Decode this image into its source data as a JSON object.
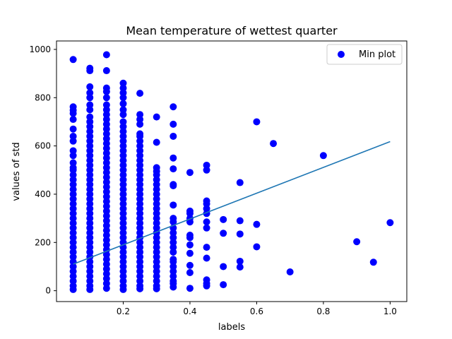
{
  "chart_data": {
    "type": "scatter",
    "title": "Mean temperature of wettest quarter",
    "xlabel": "labels",
    "ylabel": "values of std",
    "xlim": [
      0.0,
      1.05
    ],
    "ylim": [
      -45,
      1035
    ],
    "xticks": [
      0.2,
      0.4,
      0.6,
      0.8,
      1.0
    ],
    "xtick_labels": [
      "0.2",
      "0.4",
      "0.6",
      "0.8",
      "1.0"
    ],
    "yticks": [
      0,
      200,
      400,
      600,
      800,
      1000
    ],
    "ytick_labels": [
      "0",
      "200",
      "400",
      "600",
      "800",
      "1000"
    ],
    "grid": false,
    "legend": {
      "position": "upper right",
      "entries": [
        "Min plot"
      ]
    },
    "series": [
      {
        "name": "Min plot",
        "kind": "scatter",
        "color": "#0000ff",
        "points": [
          [
            0.05,
            958
          ],
          [
            0.05,
            762
          ],
          [
            0.05,
            748
          ],
          [
            0.05,
            735
          ],
          [
            0.05,
            710
          ],
          [
            0.05,
            670
          ],
          [
            0.05,
            640
          ],
          [
            0.05,
            620
          ],
          [
            0.05,
            580
          ],
          [
            0.05,
            560
          ],
          [
            0.05,
            530
          ],
          [
            0.05,
            510
          ],
          [
            0.05,
            500
          ],
          [
            0.05,
            480
          ],
          [
            0.05,
            460
          ],
          [
            0.05,
            440
          ],
          [
            0.05,
            420
          ],
          [
            0.05,
            400
          ],
          [
            0.05,
            380
          ],
          [
            0.05,
            360
          ],
          [
            0.05,
            340
          ],
          [
            0.05,
            320
          ],
          [
            0.05,
            300
          ],
          [
            0.05,
            280
          ],
          [
            0.05,
            260
          ],
          [
            0.05,
            240
          ],
          [
            0.05,
            220
          ],
          [
            0.05,
            200
          ],
          [
            0.05,
            180
          ],
          [
            0.05,
            160
          ],
          [
            0.05,
            140
          ],
          [
            0.05,
            120
          ],
          [
            0.05,
            100
          ],
          [
            0.05,
            80
          ],
          [
            0.05,
            60
          ],
          [
            0.05,
            40
          ],
          [
            0.05,
            20
          ],
          [
            0.05,
            5
          ],
          [
            0.1,
            922
          ],
          [
            0.1,
            912
          ],
          [
            0.1,
            845
          ],
          [
            0.1,
            820
          ],
          [
            0.1,
            800
          ],
          [
            0.1,
            770
          ],
          [
            0.1,
            750
          ],
          [
            0.1,
            720
          ],
          [
            0.1,
            700
          ],
          [
            0.1,
            680
          ],
          [
            0.1,
            660
          ],
          [
            0.1,
            640
          ],
          [
            0.1,
            620
          ],
          [
            0.1,
            600
          ],
          [
            0.1,
            580
          ],
          [
            0.1,
            560
          ],
          [
            0.1,
            540
          ],
          [
            0.1,
            520
          ],
          [
            0.1,
            500
          ],
          [
            0.1,
            480
          ],
          [
            0.1,
            460
          ],
          [
            0.1,
            440
          ],
          [
            0.1,
            420
          ],
          [
            0.1,
            400
          ],
          [
            0.1,
            380
          ],
          [
            0.1,
            360
          ],
          [
            0.1,
            340
          ],
          [
            0.1,
            320
          ],
          [
            0.1,
            300
          ],
          [
            0.1,
            280
          ],
          [
            0.1,
            260
          ],
          [
            0.1,
            240
          ],
          [
            0.1,
            220
          ],
          [
            0.1,
            200
          ],
          [
            0.1,
            180
          ],
          [
            0.1,
            160
          ],
          [
            0.1,
            140
          ],
          [
            0.1,
            120
          ],
          [
            0.1,
            100
          ],
          [
            0.1,
            80
          ],
          [
            0.1,
            60
          ],
          [
            0.1,
            40
          ],
          [
            0.1,
            20
          ],
          [
            0.1,
            5
          ],
          [
            0.15,
            978
          ],
          [
            0.15,
            912
          ],
          [
            0.15,
            840
          ],
          [
            0.15,
            825
          ],
          [
            0.15,
            800
          ],
          [
            0.15,
            770
          ],
          [
            0.15,
            750
          ],
          [
            0.15,
            730
          ],
          [
            0.15,
            710
          ],
          [
            0.15,
            690
          ],
          [
            0.15,
            670
          ],
          [
            0.15,
            650
          ],
          [
            0.15,
            630
          ],
          [
            0.15,
            610
          ],
          [
            0.15,
            590
          ],
          [
            0.15,
            570
          ],
          [
            0.15,
            550
          ],
          [
            0.15,
            530
          ],
          [
            0.15,
            510
          ],
          [
            0.15,
            490
          ],
          [
            0.15,
            470
          ],
          [
            0.15,
            450
          ],
          [
            0.15,
            430
          ],
          [
            0.15,
            410
          ],
          [
            0.15,
            390
          ],
          [
            0.15,
            370
          ],
          [
            0.15,
            350
          ],
          [
            0.15,
            330
          ],
          [
            0.15,
            310
          ],
          [
            0.15,
            290
          ],
          [
            0.15,
            270
          ],
          [
            0.15,
            250
          ],
          [
            0.15,
            230
          ],
          [
            0.15,
            210
          ],
          [
            0.15,
            190
          ],
          [
            0.15,
            170
          ],
          [
            0.15,
            150
          ],
          [
            0.15,
            130
          ],
          [
            0.15,
            110
          ],
          [
            0.15,
            90
          ],
          [
            0.15,
            70
          ],
          [
            0.15,
            50
          ],
          [
            0.15,
            30
          ],
          [
            0.15,
            10
          ],
          [
            0.2,
            860
          ],
          [
            0.2,
            840
          ],
          [
            0.2,
            820
          ],
          [
            0.2,
            800
          ],
          [
            0.2,
            775
          ],
          [
            0.2,
            750
          ],
          [
            0.2,
            730
          ],
          [
            0.2,
            700
          ],
          [
            0.2,
            680
          ],
          [
            0.2,
            660
          ],
          [
            0.2,
            640
          ],
          [
            0.2,
            620
          ],
          [
            0.2,
            600
          ],
          [
            0.2,
            580
          ],
          [
            0.2,
            560
          ],
          [
            0.2,
            540
          ],
          [
            0.2,
            520
          ],
          [
            0.2,
            500
          ],
          [
            0.2,
            480
          ],
          [
            0.2,
            460
          ],
          [
            0.2,
            440
          ],
          [
            0.2,
            420
          ],
          [
            0.2,
            400
          ],
          [
            0.2,
            380
          ],
          [
            0.2,
            360
          ],
          [
            0.2,
            340
          ],
          [
            0.2,
            320
          ],
          [
            0.2,
            300
          ],
          [
            0.2,
            280
          ],
          [
            0.2,
            260
          ],
          [
            0.2,
            240
          ],
          [
            0.2,
            220
          ],
          [
            0.2,
            200
          ],
          [
            0.2,
            180
          ],
          [
            0.2,
            160
          ],
          [
            0.2,
            140
          ],
          [
            0.2,
            120
          ],
          [
            0.2,
            100
          ],
          [
            0.2,
            80
          ],
          [
            0.2,
            60
          ],
          [
            0.2,
            40
          ],
          [
            0.2,
            20
          ],
          [
            0.2,
            5
          ],
          [
            0.25,
            818
          ],
          [
            0.25,
            730
          ],
          [
            0.25,
            710
          ],
          [
            0.25,
            690
          ],
          [
            0.25,
            650
          ],
          [
            0.25,
            640
          ],
          [
            0.25,
            620
          ],
          [
            0.25,
            600
          ],
          [
            0.25,
            580
          ],
          [
            0.25,
            560
          ],
          [
            0.25,
            540
          ],
          [
            0.25,
            520
          ],
          [
            0.25,
            500
          ],
          [
            0.25,
            480
          ],
          [
            0.25,
            460
          ],
          [
            0.25,
            440
          ],
          [
            0.25,
            420
          ],
          [
            0.25,
            400
          ],
          [
            0.25,
            380
          ],
          [
            0.25,
            360
          ],
          [
            0.25,
            340
          ],
          [
            0.25,
            320
          ],
          [
            0.25,
            300
          ],
          [
            0.25,
            280
          ],
          [
            0.25,
            260
          ],
          [
            0.25,
            240
          ],
          [
            0.25,
            220
          ],
          [
            0.25,
            200
          ],
          [
            0.25,
            180
          ],
          [
            0.25,
            160
          ],
          [
            0.25,
            140
          ],
          [
            0.25,
            120
          ],
          [
            0.25,
            100
          ],
          [
            0.25,
            80
          ],
          [
            0.25,
            60
          ],
          [
            0.25,
            40
          ],
          [
            0.25,
            20
          ],
          [
            0.25,
            8
          ],
          [
            0.3,
            720
          ],
          [
            0.3,
            615
          ],
          [
            0.3,
            510
          ],
          [
            0.3,
            495
          ],
          [
            0.3,
            480
          ],
          [
            0.3,
            460
          ],
          [
            0.3,
            440
          ],
          [
            0.3,
            420
          ],
          [
            0.3,
            400
          ],
          [
            0.3,
            380
          ],
          [
            0.3,
            360
          ],
          [
            0.3,
            340
          ],
          [
            0.3,
            320
          ],
          [
            0.3,
            300
          ],
          [
            0.3,
            280
          ],
          [
            0.3,
            260
          ],
          [
            0.3,
            240
          ],
          [
            0.3,
            220
          ],
          [
            0.3,
            200
          ],
          [
            0.3,
            180
          ],
          [
            0.3,
            160
          ],
          [
            0.3,
            140
          ],
          [
            0.3,
            120
          ],
          [
            0.3,
            100
          ],
          [
            0.3,
            80
          ],
          [
            0.3,
            60
          ],
          [
            0.3,
            40
          ],
          [
            0.3,
            20
          ],
          [
            0.3,
            8
          ],
          [
            0.35,
            762
          ],
          [
            0.35,
            690
          ],
          [
            0.35,
            640
          ],
          [
            0.35,
            550
          ],
          [
            0.35,
            505
          ],
          [
            0.35,
            440
          ],
          [
            0.35,
            435
          ],
          [
            0.35,
            355
          ],
          [
            0.35,
            300
          ],
          [
            0.35,
            285
          ],
          [
            0.35,
            260
          ],
          [
            0.35,
            240
          ],
          [
            0.35,
            220
          ],
          [
            0.35,
            200
          ],
          [
            0.35,
            180
          ],
          [
            0.35,
            160
          ],
          [
            0.35,
            130
          ],
          [
            0.35,
            120
          ],
          [
            0.35,
            100
          ],
          [
            0.35,
            80
          ],
          [
            0.35,
            60
          ],
          [
            0.35,
            40
          ],
          [
            0.35,
            30
          ],
          [
            0.35,
            15
          ],
          [
            0.4,
            490
          ],
          [
            0.4,
            330
          ],
          [
            0.4,
            320
          ],
          [
            0.4,
            300
          ],
          [
            0.4,
            285
          ],
          [
            0.4,
            230
          ],
          [
            0.4,
            220
          ],
          [
            0.4,
            190
          ],
          [
            0.4,
            155
          ],
          [
            0.4,
            105
          ],
          [
            0.4,
            75
          ],
          [
            0.4,
            10
          ],
          [
            0.45,
            520
          ],
          [
            0.45,
            500
          ],
          [
            0.45,
            372
          ],
          [
            0.45,
            360
          ],
          [
            0.45,
            340
          ],
          [
            0.45,
            320
          ],
          [
            0.45,
            285
          ],
          [
            0.45,
            260
          ],
          [
            0.45,
            180
          ],
          [
            0.45,
            135
          ],
          [
            0.45,
            45
          ],
          [
            0.45,
            30
          ],
          [
            0.45,
            20
          ],
          [
            0.5,
            295
          ],
          [
            0.5,
            238
          ],
          [
            0.5,
            100
          ],
          [
            0.5,
            25
          ],
          [
            0.55,
            448
          ],
          [
            0.55,
            290
          ],
          [
            0.55,
            235
          ],
          [
            0.55,
            122
          ],
          [
            0.55,
            98
          ],
          [
            0.6,
            700
          ],
          [
            0.6,
            275
          ],
          [
            0.6,
            182
          ],
          [
            0.65,
            610
          ],
          [
            0.7,
            78
          ],
          [
            0.8,
            560
          ],
          [
            0.9,
            203
          ],
          [
            0.95,
            118
          ],
          [
            1.0,
            282
          ]
        ]
      },
      {
        "name": "",
        "kind": "line",
        "color": "#1f77b4",
        "points": [
          [
            0.05,
            110
          ],
          [
            1.0,
            618
          ]
        ]
      }
    ]
  }
}
